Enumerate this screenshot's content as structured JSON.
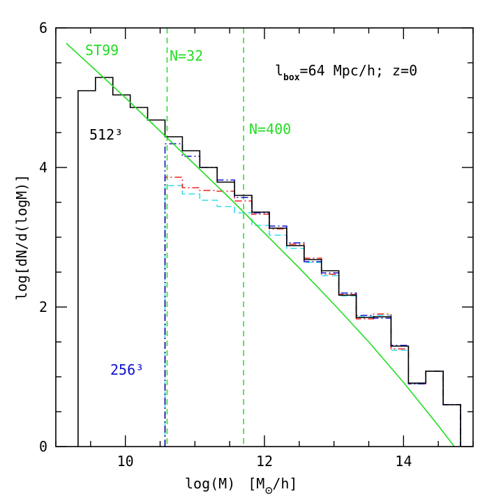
{
  "chart_data": {
    "type": "line",
    "title": "",
    "xlabel": "log(M)",
    "xlabel_unit_prefix": "[M",
    "xlabel_unit_suffix": "/h]",
    "ylabel": "log[dN/d(logM)]",
    "xlim": [
      9.0,
      15.0
    ],
    "ylim": [
      0,
      6
    ],
    "x_ticks": [
      10,
      12,
      14
    ],
    "y_ticks": [
      0,
      2,
      4,
      6
    ],
    "x_tick_labels": [
      "10",
      "12",
      "14"
    ],
    "y_tick_labels": [
      "0",
      "2",
      "4",
      "6"
    ],
    "grid": false,
    "legend": "none",
    "colors": {
      "black": "#000000",
      "green": "#22dd22",
      "blue": "#1010cc",
      "red": "#ee2020",
      "cyan": "#33ddee"
    },
    "annotations": {
      "st99": "ST99",
      "n32": "N=32",
      "n400": "N=400",
      "lbox_l": "l",
      "lbox_sub": "box",
      "lbox_rest": "=64 Mpc/h; z=0",
      "res512": "512³",
      "res256": "256³"
    },
    "vertical_lines": [
      10.6,
      11.7
    ],
    "series": [
      {
        "key": "st99_fit",
        "style": "solid-green",
        "x": [
          9.15,
          9.5,
          10.0,
          10.5,
          11.0,
          11.5,
          12.0,
          12.5,
          13.0,
          13.5,
          14.0,
          14.5,
          14.96
        ],
        "y": [
          5.78,
          5.46,
          5.0,
          4.52,
          4.04,
          3.56,
          3.06,
          2.56,
          2.04,
          1.5,
          0.92,
          0.3,
          -0.3
        ]
      },
      {
        "key": "hist_512",
        "style": "solid-black",
        "bin_edges": [
          9.32,
          9.57,
          9.82,
          10.07,
          10.32,
          10.57,
          10.82,
          11.07,
          11.32,
          11.57,
          11.82,
          12.07,
          12.32,
          12.57,
          12.82,
          13.07,
          13.32,
          13.57,
          13.82,
          14.07,
          14.32,
          14.57,
          14.82
        ],
        "values": [
          5.1,
          5.29,
          5.04,
          4.86,
          4.68,
          4.44,
          4.24,
          4.0,
          3.79,
          3.6,
          3.36,
          3.13,
          2.88,
          2.68,
          2.52,
          2.17,
          1.85,
          1.86,
          1.44,
          0.91,
          1.08,
          0.6
        ]
      },
      {
        "key": "hist_256_blue",
        "style": "dashdot-blue",
        "bin_edges": [
          10.57,
          10.82,
          11.07,
          11.32,
          11.57,
          11.82,
          12.07,
          12.32,
          12.57,
          12.82,
          13.07,
          13.32,
          13.57,
          13.82,
          14.07,
          14.32,
          14.57,
          14.82
        ],
        "values": [
          4.34,
          4.16,
          4.0,
          3.82,
          3.57,
          3.35,
          3.16,
          2.92,
          2.65,
          2.49,
          2.2,
          1.88,
          1.84,
          1.45,
          0.9,
          1.08,
          0.6
        ]
      },
      {
        "key": "hist_256_red",
        "style": "dashdot-red",
        "bin_edges": [
          10.57,
          10.82,
          11.07,
          11.32,
          11.57,
          11.82,
          12.07,
          12.32,
          12.57,
          12.82,
          13.07,
          13.32,
          13.57,
          13.82,
          14.07,
          14.32,
          14.57,
          14.82
        ],
        "values": [
          3.86,
          3.71,
          3.67,
          3.66,
          3.52,
          3.33,
          3.12,
          2.9,
          2.7,
          2.47,
          2.18,
          1.83,
          1.9,
          1.4,
          0.9,
          1.08,
          0.6
        ]
      },
      {
        "key": "hist_256_cyan",
        "style": "dashed-cyan",
        "bin_edges": [
          10.57,
          10.82,
          11.07,
          11.32,
          11.57,
          11.82,
          12.07,
          12.32,
          12.57,
          12.82,
          13.07,
          13.32,
          13.57,
          13.82,
          14.07,
          14.32,
          14.57,
          14.82
        ],
        "values": [
          3.74,
          3.62,
          3.53,
          3.44,
          3.35,
          3.17,
          3.03,
          2.84,
          2.64,
          2.45,
          2.16,
          1.86,
          1.88,
          1.38,
          0.9,
          1.08,
          0.6
        ]
      }
    ]
  }
}
